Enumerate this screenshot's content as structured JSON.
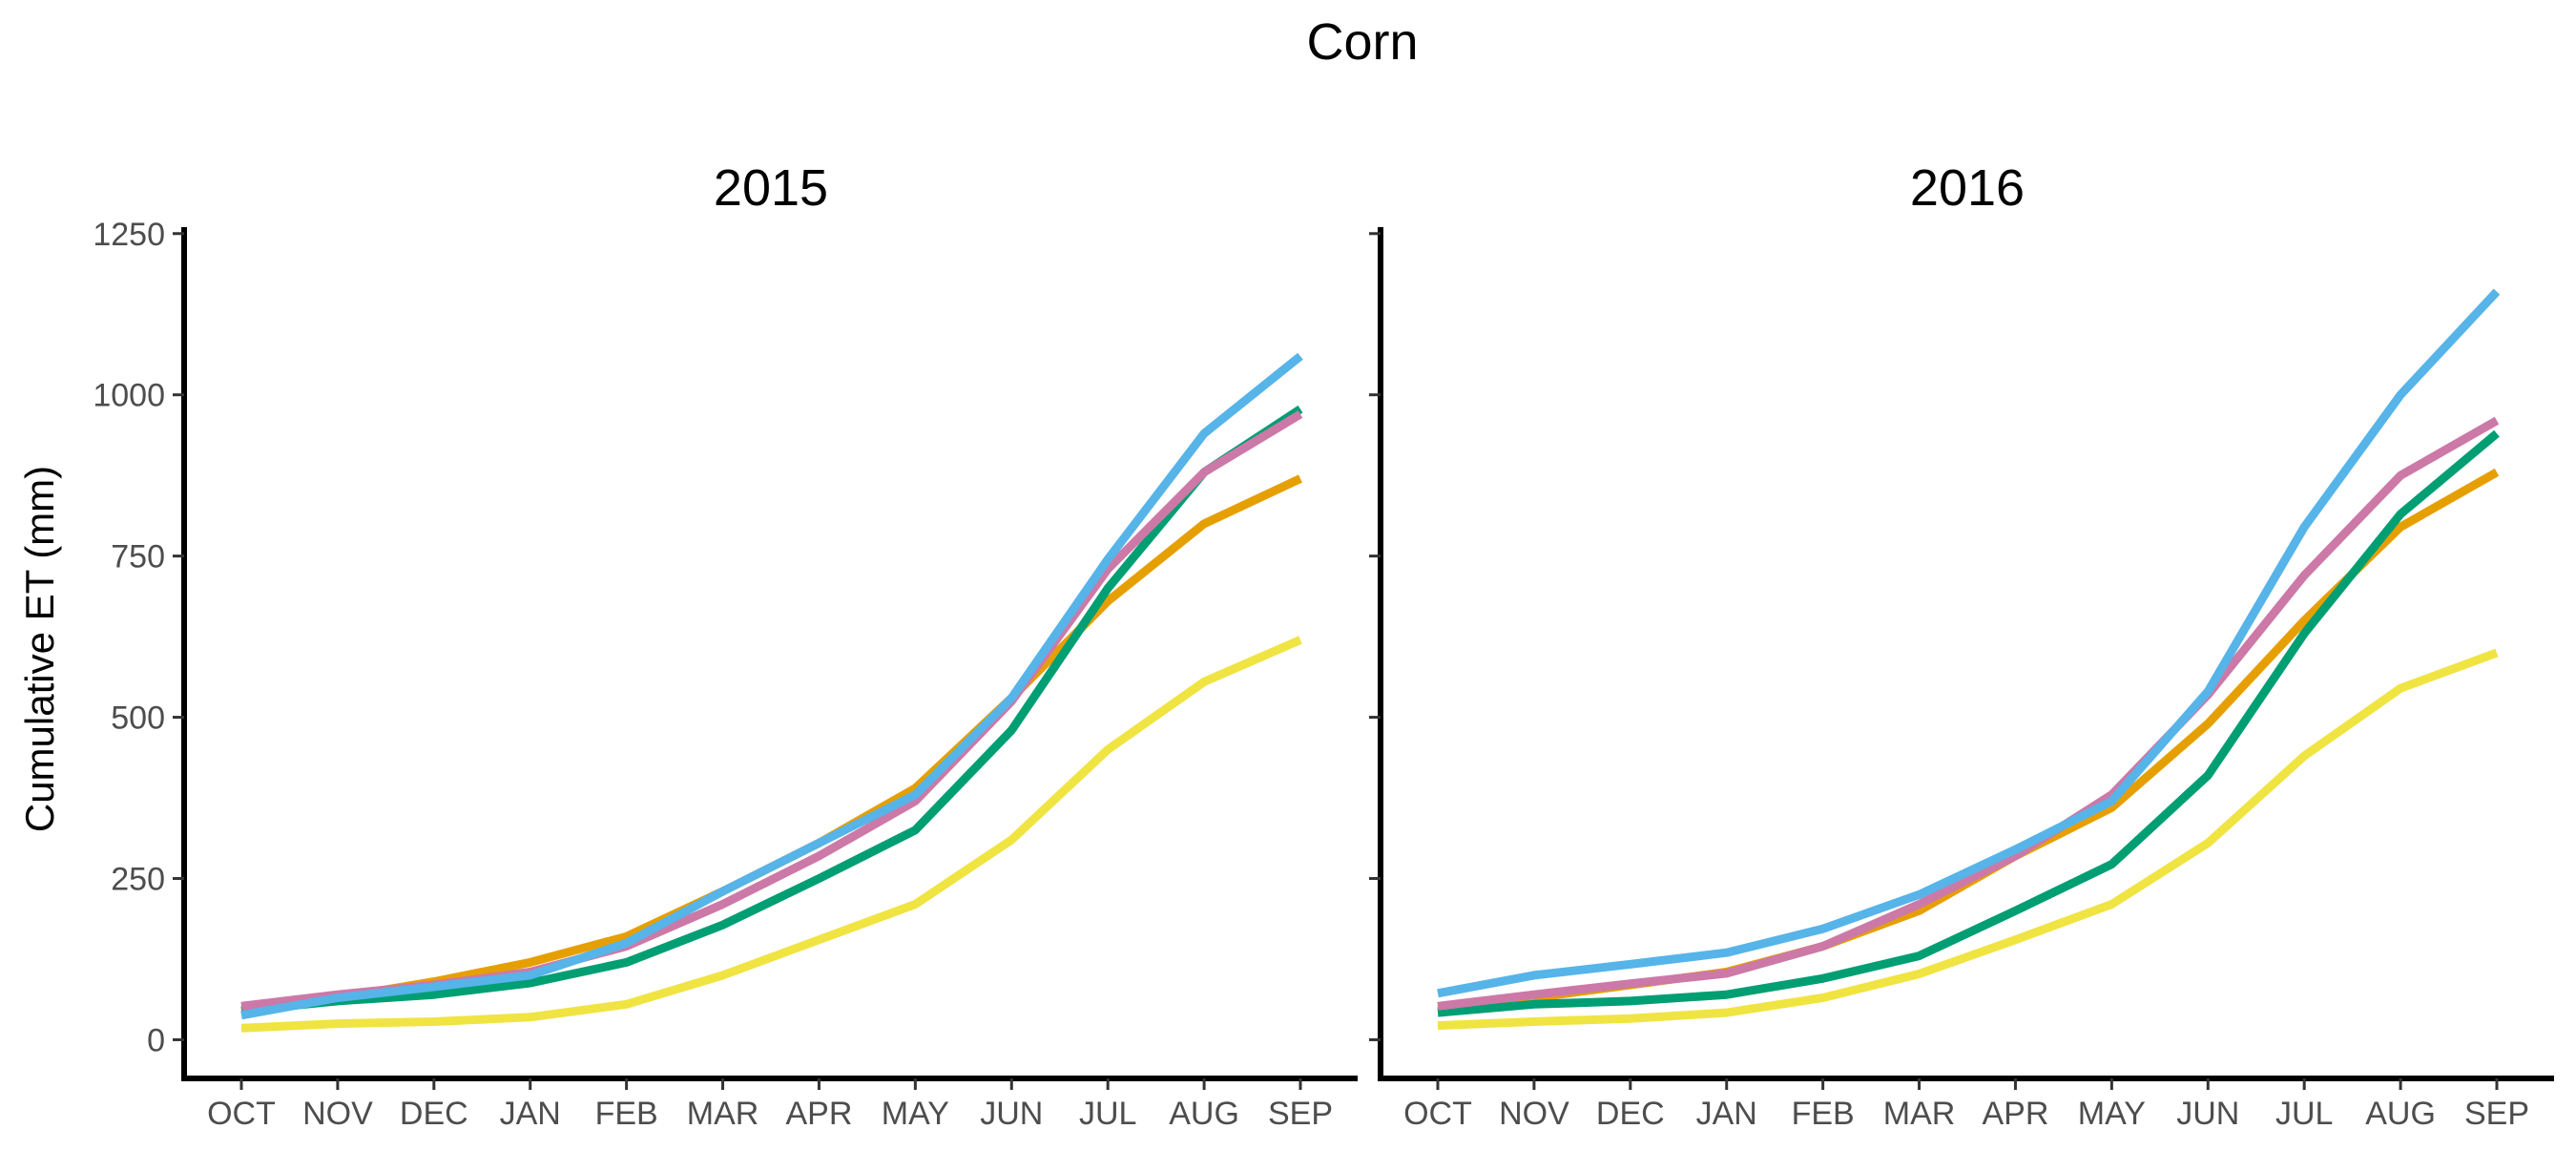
{
  "chart_data": {
    "type": "line",
    "title": "Corn",
    "ylabel": "Cumulative ET (mm)",
    "xlabel": "",
    "ylim": [
      -60,
      1260
    ],
    "yticks": [
      0,
      250,
      500,
      750,
      1000,
      1250
    ],
    "ytick_labels": [
      "0",
      "250",
      "500",
      "750",
      "1000",
      "1250"
    ],
    "categories": [
      "OCT",
      "NOV",
      "DEC",
      "JAN",
      "FEB",
      "MAR",
      "APR",
      "MAY",
      "JUN",
      "JUL",
      "AUG",
      "SEP"
    ],
    "grid": false,
    "legend": "none",
    "panels": [
      {
        "title": "2015",
        "series": [
          {
            "color": "#F0E442",
            "values": [
              18,
              25,
              28,
              35,
              55,
              100,
              155,
              210,
              310,
              450,
              555,
              620
            ]
          },
          {
            "color": "#E69F00",
            "values": [
              45,
              65,
              90,
              120,
              160,
              230,
              305,
              390,
              530,
              680,
              800,
              870
            ]
          },
          {
            "color": "#009E73",
            "values": [
              45,
              60,
              70,
              88,
              120,
              178,
              250,
              325,
              480,
              700,
              880,
              978
            ]
          },
          {
            "color": "#CC79A7",
            "values": [
              52,
              70,
              85,
              105,
              145,
              210,
              285,
              370,
              525,
              730,
              880,
              970
            ]
          },
          {
            "color": "#56B4E9",
            "values": [
              38,
              65,
              82,
              100,
              150,
              230,
              305,
              380,
              530,
              745,
              940,
              1060
            ]
          }
        ]
      },
      {
        "title": "2016",
        "series": [
          {
            "color": "#F0E442",
            "values": [
              22,
              28,
              33,
              42,
              65,
              102,
              155,
              210,
              305,
              440,
              545,
              600
            ]
          },
          {
            "color": "#E69F00",
            "values": [
              45,
              65,
              85,
              105,
              145,
              200,
              285,
              360,
              490,
              650,
              795,
              880
            ]
          },
          {
            "color": "#009E73",
            "values": [
              42,
              55,
              60,
              70,
              95,
              130,
              200,
              272,
              410,
              630,
              815,
              940
            ]
          },
          {
            "color": "#CC79A7",
            "values": [
              52,
              70,
              87,
              103,
              145,
              210,
              285,
              380,
              535,
              720,
              875,
              960
            ]
          },
          {
            "color": "#56B4E9",
            "values": [
              72,
              100,
              117,
              135,
              172,
              225,
              295,
              370,
              540,
              795,
              1000,
              1160
            ]
          }
        ]
      }
    ]
  }
}
